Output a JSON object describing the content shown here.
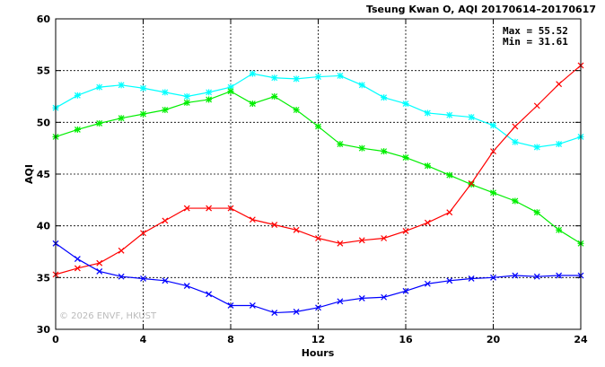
{
  "chart_data": {
    "type": "line",
    "title": "Tseung Kwan O, AQI 20170614–20170617",
    "xlabel": "Hours",
    "ylabel": "AQI",
    "xlim": [
      0,
      24
    ],
    "ylim": [
      30,
      60
    ],
    "xticks": [
      "0",
      "4",
      "8",
      "12",
      "16",
      "20",
      "24"
    ],
    "yticks": [
      "30",
      "35",
      "40",
      "45",
      "50",
      "55",
      "60"
    ],
    "grid": true,
    "stats": {
      "max": "Max = 55.52",
      "min": "Min = 31.61"
    },
    "watermark": "© 2026 ENVF, HKUST",
    "x": [
      0,
      1,
      2,
      3,
      4,
      5,
      6,
      7,
      8,
      9,
      10,
      11,
      12,
      13,
      14,
      15,
      16,
      17,
      18,
      19,
      20,
      21,
      22,
      23,
      24
    ],
    "series": [
      {
        "color": "#00ffff",
        "marker": "*",
        "values": [
          51.4,
          52.6,
          53.4,
          53.6,
          53.3,
          52.9,
          52.5,
          52.9,
          53.4,
          54.7,
          54.3,
          54.2,
          54.4,
          54.5,
          53.6,
          52.4,
          51.8,
          50.9,
          50.7,
          50.5,
          49.7,
          48.1,
          47.6,
          47.9,
          48.6
        ]
      },
      {
        "color": "#00ee00",
        "marker": "*",
        "values": [
          48.6,
          49.3,
          49.9,
          50.4,
          50.8,
          51.2,
          51.9,
          52.2,
          53.0,
          51.8,
          52.5,
          51.2,
          49.6,
          47.9,
          47.5,
          47.2,
          46.6,
          45.8,
          44.9,
          44.0,
          43.2,
          42.4,
          41.3,
          39.6,
          38.3
        ]
      },
      {
        "color": "#ff0000",
        "marker": "x",
        "values": [
          35.3,
          35.9,
          36.4,
          37.6,
          39.3,
          40.5,
          41.7,
          41.7,
          41.7,
          40.6,
          40.1,
          39.6,
          38.8,
          38.3,
          38.6,
          38.8,
          39.5,
          40.3,
          41.3,
          44.1,
          47.2,
          49.6,
          51.6,
          53.7,
          55.5
        ]
      },
      {
        "color": "#0000ff",
        "marker": "x",
        "values": [
          38.3,
          36.8,
          35.6,
          35.1,
          34.9,
          34.7,
          34.2,
          33.4,
          32.3,
          32.3,
          31.6,
          31.7,
          32.1,
          32.7,
          33.0,
          33.1,
          33.7,
          34.4,
          34.7,
          34.9,
          35.0,
          35.2,
          35.1,
          35.2,
          35.2
        ]
      }
    ]
  }
}
